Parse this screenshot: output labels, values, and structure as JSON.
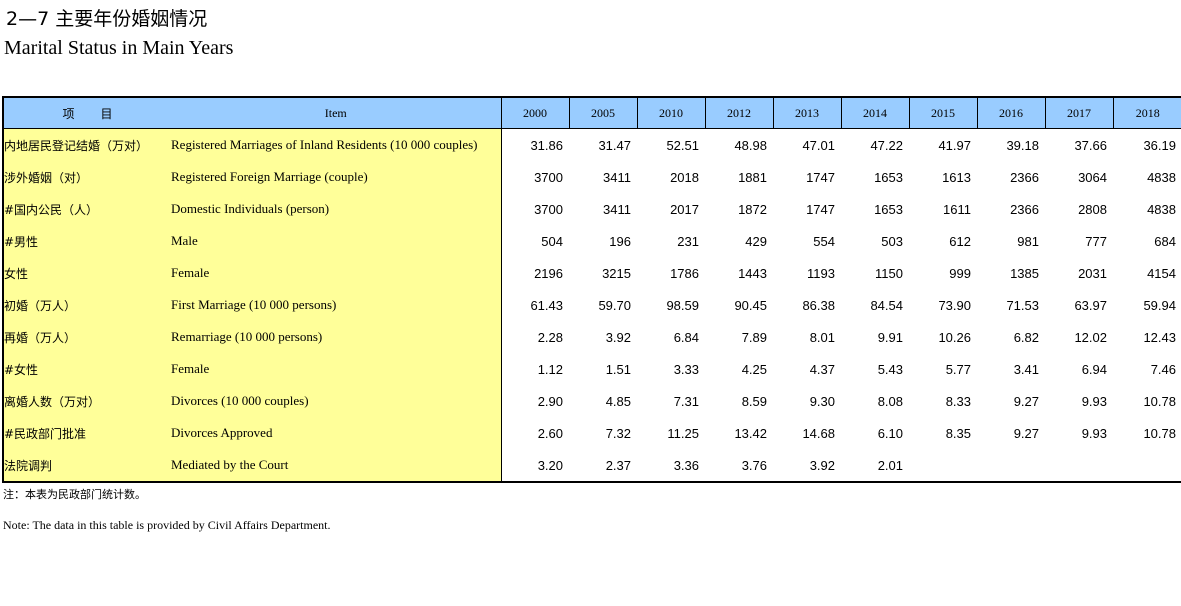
{
  "title_cn": "2—7  主要年份婚姻情况",
  "title_en": "Marital Status in Main Years",
  "header": {
    "item_cn_left": "项",
    "item_cn_right": "目",
    "item_en": "Item",
    "years": [
      "2000",
      "2005",
      "2010",
      "2012",
      "2013",
      "2014",
      "2015",
      "2016",
      "2017",
      "2018"
    ]
  },
  "rows": [
    {
      "cn": "内地居民登记结婚（万对）",
      "en": "Registered Marriages of Inland Residents (10 000 couples)",
      "cn_indent": 0,
      "en_indent": 0,
      "values": [
        "31.86",
        "31.47",
        "52.51",
        "48.98",
        "47.01",
        "47.22",
        "41.97",
        "39.18",
        "37.66",
        "36.19"
      ]
    },
    {
      "cn": "涉外婚姻（对）",
      "en": "Registered Foreign Marriage (couple)",
      "cn_indent": 0,
      "en_indent": 0,
      "values": [
        "3700",
        "3411",
        "2018",
        "1881",
        "1747",
        "1653",
        "1613",
        "2366",
        "3064",
        "4838"
      ]
    },
    {
      "cn": "#国内公民（人）",
      "en": "Domestic Individuals (person)",
      "cn_indent": 1,
      "en_indent": 1,
      "values": [
        "3700",
        "3411",
        "2017",
        "1872",
        "1747",
        "1653",
        "1611",
        "2366",
        "2808",
        "4838"
      ]
    },
    {
      "cn": "#男性",
      "en": "Male",
      "cn_indent": 2,
      "en_indent": 2,
      "values": [
        "504",
        "196",
        "231",
        "429",
        "554",
        "503",
        "612",
        "981",
        "777",
        "684"
      ]
    },
    {
      "cn": "女性",
      "en": "Female",
      "cn_indent": 3,
      "en_indent": 2,
      "values": [
        "2196",
        "3215",
        "1786",
        "1443",
        "1193",
        "1150",
        "999",
        "1385",
        "2031",
        "4154"
      ]
    },
    {
      "cn": "初婚（万人）",
      "en": "First Marriage (10 000 persons)",
      "cn_indent": 1,
      "en_indent": 1,
      "values": [
        "61.43",
        "59.70",
        "98.59",
        "90.45",
        "86.38",
        "84.54",
        "73.90",
        "71.53",
        "63.97",
        "59.94"
      ]
    },
    {
      "cn": "再婚（万人）",
      "en": "Remarriage (10 000 persons)",
      "cn_indent": 1,
      "en_indent": 1,
      "values": [
        "2.28",
        "3.92",
        "6.84",
        "7.89",
        "8.01",
        "9.91",
        "10.26",
        "6.82",
        "12.02",
        "12.43"
      ]
    },
    {
      "cn": "#女性",
      "en": "Female",
      "cn_indent": 1,
      "en_indent": 3,
      "values": [
        "1.12",
        "1.51",
        "3.33",
        "4.25",
        "4.37",
        "5.43",
        "5.77",
        "3.41",
        "6.94",
        "7.46"
      ]
    },
    {
      "cn": "离婚人数（万对）",
      "en": "Divorces (10 000 couples)",
      "cn_indent": 0,
      "en_indent": 0,
      "values": [
        "2.90",
        "4.85",
        "7.31",
        "8.59",
        "9.30",
        "8.08",
        "8.33",
        "9.27",
        "9.93",
        "10.78"
      ]
    },
    {
      "cn": "#民政部门批准",
      "en": "Divorces Approved",
      "cn_indent": 1,
      "en_indent": 3,
      "values": [
        "2.60",
        "7.32",
        "11.25",
        "13.42",
        "14.68",
        "6.10",
        "8.35",
        "9.27",
        "9.93",
        "10.78"
      ]
    },
    {
      "cn": "法院调判",
      "en": "Mediated by the Court",
      "cn_indent": 2,
      "en_indent": 3,
      "values": [
        "3.20",
        "2.37",
        "3.36",
        "3.76",
        "3.92",
        "2.01",
        "",
        "",
        "",
        ""
      ]
    }
  ],
  "note_cn": "注：本表为民政部门统计数。",
  "note_en": "Note: The data in this table is provided by Civil Affairs Department.",
  "colors": {
    "header_bg": "#99ccff",
    "label_bg": "#ffff99"
  }
}
